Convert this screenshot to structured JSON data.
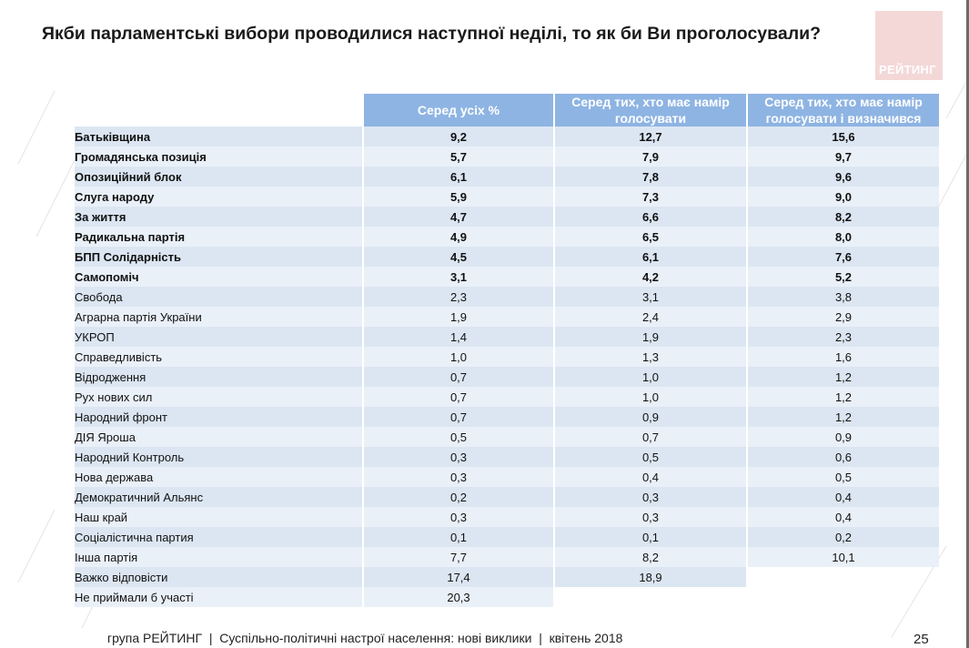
{
  "title": "Якби парламентські вибори проводилися наступної неділі, то як би Ви проголосували?",
  "logo_text": "РЕЙТИНГ",
  "columns": [
    "Серед усіх %",
    "Серед тих, хто має намір голосувати",
    "Серед тих, хто має намір голосувати і визначився"
  ],
  "rows": [
    {
      "party": "Батьківщина",
      "all": "9,2",
      "intend": "12,7",
      "decided": "15,6"
    },
    {
      "party": "Громадянська позиція",
      "all": "5,7",
      "intend": "7,9",
      "decided": "9,7"
    },
    {
      "party": "Опозиційний блок",
      "all": "6,1",
      "intend": "7,8",
      "decided": "9,6"
    },
    {
      "party": "Слуга народу",
      "all": "5,9",
      "intend": "7,3",
      "decided": "9,0"
    },
    {
      "party": "За життя",
      "all": "4,7",
      "intend": "6,6",
      "decided": "8,2"
    },
    {
      "party": "Радикальна партія",
      "all": "4,9",
      "intend": "6,5",
      "decided": "8,0"
    },
    {
      "party": "БПП Солідарність",
      "all": "4,5",
      "intend": "6,1",
      "decided": "7,6"
    },
    {
      "party": "Самопоміч",
      "all": "3,1",
      "intend": "4,2",
      "decided": "5,2"
    },
    {
      "party": "Свобода",
      "all": "2,3",
      "intend": "3,1",
      "decided": "3,8"
    },
    {
      "party": "Аграрна партія України",
      "all": "1,9",
      "intend": "2,4",
      "decided": "2,9"
    },
    {
      "party": "УКРОП",
      "all": "1,4",
      "intend": "1,9",
      "decided": "2,3"
    },
    {
      "party": "Справедливість",
      "all": "1,0",
      "intend": "1,3",
      "decided": "1,6"
    },
    {
      "party": "Відродження",
      "all": "0,7",
      "intend": "1,0",
      "decided": "1,2"
    },
    {
      "party": "Рух нових сил",
      "all": "0,7",
      "intend": "1,0",
      "decided": "1,2"
    },
    {
      "party": "Народний фронт",
      "all": "0,7",
      "intend": "0,9",
      "decided": "1,2"
    },
    {
      "party": "ДІЯ Яроша",
      "all": "0,5",
      "intend": "0,7",
      "decided": "0,9"
    },
    {
      "party": "Народний Контроль",
      "all": "0,3",
      "intend": "0,5",
      "decided": "0,6"
    },
    {
      "party": "Нова держава",
      "all": "0,3",
      "intend": "0,4",
      "decided": "0,5"
    },
    {
      "party": "Демократичний Альянс",
      "all": "0,2",
      "intend": "0,3",
      "decided": "0,4"
    },
    {
      "party": "Наш край",
      "all": "0,3",
      "intend": "0,3",
      "decided": "0,4"
    },
    {
      "party": "Соціалістична партия",
      "all": "0,1",
      "intend": "0,1",
      "decided": "0,2"
    },
    {
      "party": "Інша партія",
      "all": "7,7",
      "intend": "8,2",
      "decided": "10,1"
    },
    {
      "party": "Важко відповісти",
      "all": "17,4",
      "intend": "18,9",
      "decided": ""
    },
    {
      "party": "Не приймали б участі",
      "all": "20,3",
      "intend": "",
      "decided": ""
    }
  ],
  "bold_rows": 8,
  "footer": "група РЕЙТИНГ  |  Суспільно-політичні настрої населення: нові виклики  |  квітень 2018",
  "page_number": "25",
  "colors": {
    "header": "#8eb4e3",
    "row_odd": "#dce6f2",
    "row_even": "#eaf0f8"
  }
}
